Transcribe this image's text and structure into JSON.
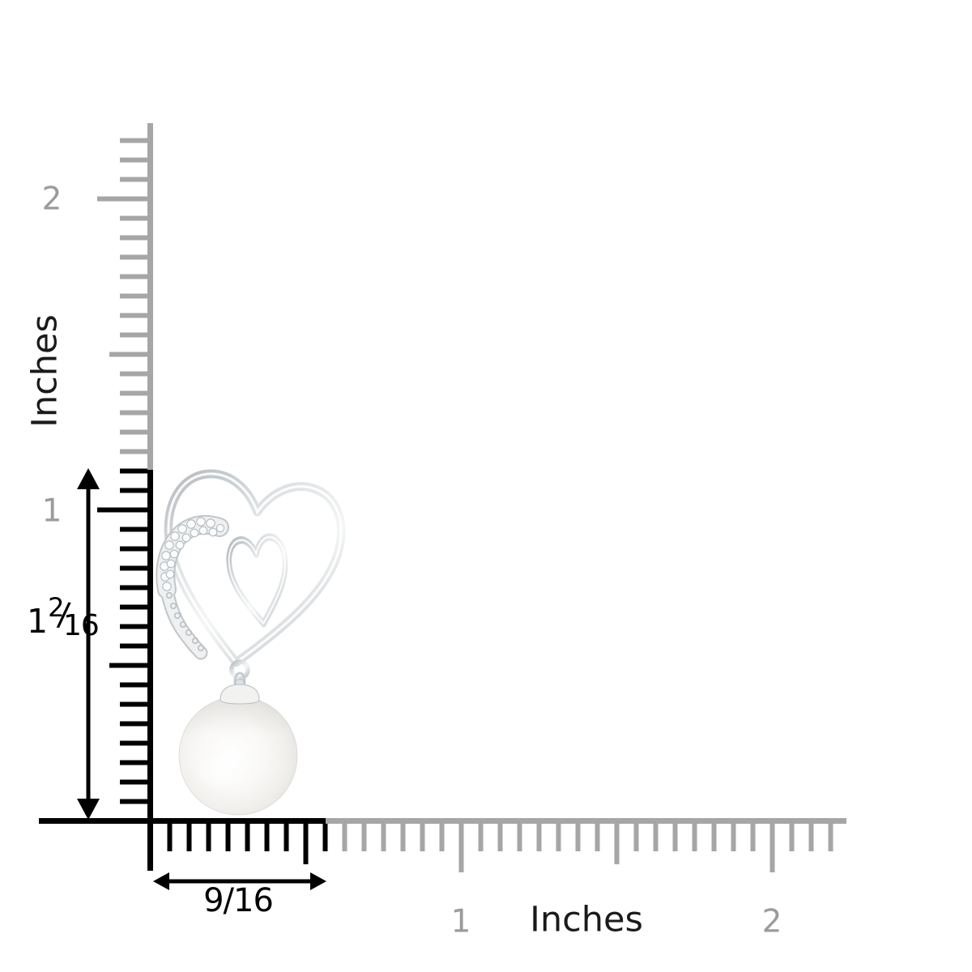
{
  "rulers": {
    "vertical": {
      "unit_label": "Inches",
      "marks": [
        "2",
        "1"
      ]
    },
    "horizontal": {
      "unit_label": "Inches",
      "marks": [
        "1",
        "2"
      ]
    }
  },
  "measurements": {
    "height": {
      "whole": "1",
      "numerator": "2",
      "slash": "/",
      "denominator": "16"
    },
    "width": {
      "display": "9/16"
    }
  },
  "illustration": {
    "name": "freshwater-pearl-entwined-hearts-drop-earring",
    "parts": [
      "large-heart-outline",
      "small-heart-outline",
      "diamond-pave-arc",
      "bail-ring",
      "pearl-cap",
      "pearl-drop"
    ]
  },
  "colors": {
    "ink": "#000000",
    "text": "#1a1a1a",
    "ruler_gray": "#a6a6a6",
    "label_gray": "#9b9b9b",
    "metal_edge": "#c2c6c9",
    "metal_light": "#f4f6f6",
    "pave_fill": "#eef0f1",
    "diamond_fill": "#fbfcfd",
    "pearl_base": "#f0eeeb",
    "pearl_edge": "#dcdbd9"
  }
}
